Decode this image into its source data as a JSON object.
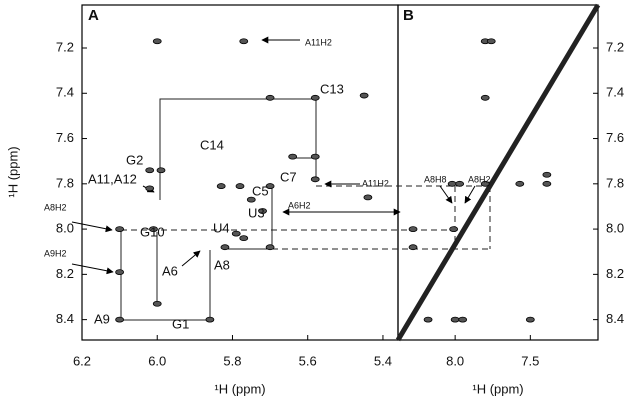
{
  "chart_data": [
    {
      "type": "scatter",
      "title": "A",
      "xlabel": "¹H (ppm)",
      "ylabel": "¹H (ppm)",
      "xlim": [
        6.2,
        5.36
      ],
      "ylim": [
        7.01,
        8.49
      ],
      "xticks": [
        6.2,
        {
          "value": 6,
          "label": "6.0"
        },
        5.8,
        5.6,
        5.4
      ],
      "yticks": [
        7.2,
        7.4,
        7.6,
        7.8,
        {
          "value": 8,
          "label": "8.0"
        },
        8.2,
        8.4
      ],
      "peaks": {
        "x": [
          6.0,
          5.77,
          5.7,
          5.58,
          5.45,
          5.64,
          5.58,
          6.02,
          5.99,
          6.02,
          5.83,
          5.78,
          5.75,
          5.72,
          5.7,
          5.58,
          5.44,
          6.01,
          6.1,
          5.79,
          5.77,
          5.82,
          5.7,
          6.1,
          6.0,
          6.1,
          5.86
        ],
        "y": [
          7.17,
          7.17,
          7.42,
          7.42,
          7.41,
          7.68,
          7.68,
          7.74,
          7.74,
          7.82,
          7.81,
          7.81,
          7.87,
          7.92,
          7.81,
          7.78,
          7.86,
          8.0,
          8.0,
          8.02,
          8.04,
          8.08,
          8.08,
          8.19,
          8.33,
          8.4,
          8.4
        ]
      },
      "annotations": [
        "A11H2",
        "C13",
        "C14",
        "G2",
        "A11,A12",
        "C7",
        "A11H2",
        "C5",
        "U3",
        "A6H2",
        "A8H2",
        "G10",
        "U4",
        "A9H2",
        "A6",
        "A8",
        "G1",
        "A9"
      ]
    },
    {
      "type": "scatter",
      "title": "B",
      "xlabel": "¹H (ppm)",
      "xlim": [
        8.38,
        7.05
      ],
      "ylim": [
        7.01,
        8.49
      ],
      "xticks": [
        {
          "value": 8,
          "label": "8.0"
        },
        7.5
      ],
      "yticks": [
        7.2,
        7.4,
        7.6,
        7.8,
        {
          "value": 8,
          "label": "8.0"
        },
        8.2,
        8.4
      ],
      "diagonal": {
        "x": [
          8.38,
          7.05
        ],
        "y": [
          8.49,
          7.01
        ]
      },
      "peaks": {
        "x": [
          8.02,
          7.97,
          7.8,
          7.57,
          7.39,
          7.39,
          8.01,
          8.28,
          8.28,
          7.8,
          7.8,
          7.76,
          7.5,
          8.0,
          7.95,
          8.18
        ],
        "y": [
          7.8,
          7.8,
          7.8,
          7.8,
          7.8,
          7.76,
          8.0,
          8.0,
          8.08,
          7.42,
          7.17,
          7.17,
          8.4,
          8.4,
          8.4,
          8.4
        ]
      },
      "annotations": [
        "A8H8",
        "A8H2"
      ]
    }
  ]
}
